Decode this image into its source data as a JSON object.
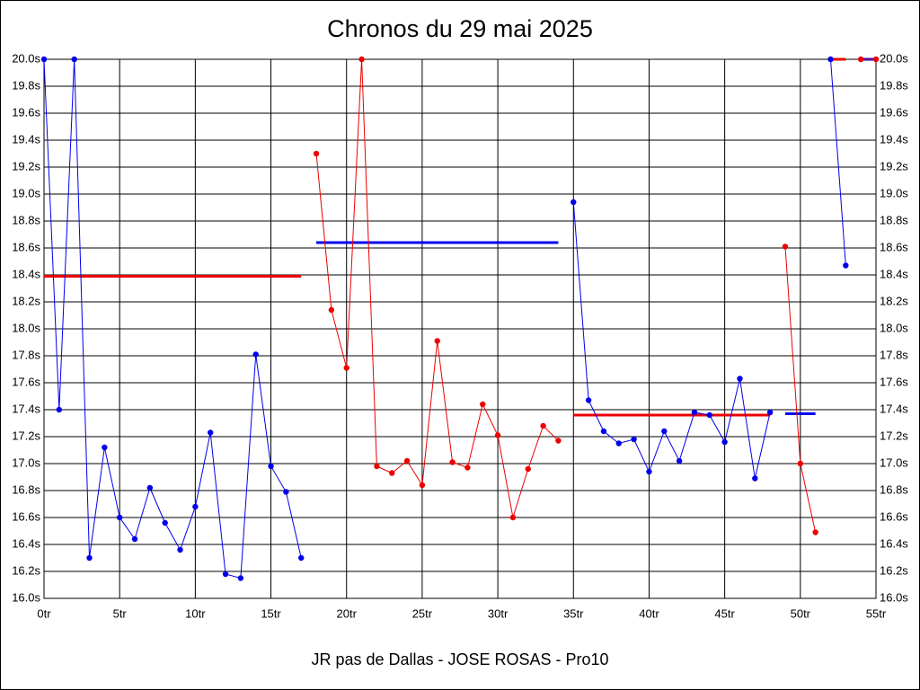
{
  "chart_data": {
    "type": "line",
    "title": "Chronos du 29 mai 2025",
    "x_label": "JR pas de Dallas - JOSE ROSAS - Pro10",
    "xlim": [
      0,
      55
    ],
    "xticks": [
      {
        "value": 0,
        "label": "0tr"
      },
      {
        "value": 5,
        "label": "5tr"
      },
      {
        "value": 10,
        "label": "10tr"
      },
      {
        "value": 15,
        "label": "15tr"
      },
      {
        "value": 20,
        "label": "20tr"
      },
      {
        "value": 25,
        "label": "25tr"
      },
      {
        "value": 30,
        "label": "30tr"
      },
      {
        "value": 35,
        "label": "35tr"
      },
      {
        "value": 40,
        "label": "40tr"
      },
      {
        "value": 45,
        "label": "45tr"
      },
      {
        "value": 50,
        "label": "50tr"
      },
      {
        "value": 55,
        "label": "55tr"
      }
    ],
    "ylim": [
      16.0,
      20.0
    ],
    "yticks": [
      {
        "value": 16.0,
        "label": "16.0s"
      },
      {
        "value": 16.2,
        "label": "16.2s"
      },
      {
        "value": 16.4,
        "label": "16.4s"
      },
      {
        "value": 16.6,
        "label": "16.6s"
      },
      {
        "value": 16.8,
        "label": "16.8s"
      },
      {
        "value": 17.0,
        "label": "17.0s"
      },
      {
        "value": 17.2,
        "label": "17.2s"
      },
      {
        "value": 17.4,
        "label": "17.4s"
      },
      {
        "value": 17.6,
        "label": "17.6s"
      },
      {
        "value": 17.8,
        "label": "17.8s"
      },
      {
        "value": 18.0,
        "label": "18.0s"
      },
      {
        "value": 18.2,
        "label": "18.2s"
      },
      {
        "value": 18.4,
        "label": "18.4s"
      },
      {
        "value": 18.6,
        "label": "18.6s"
      },
      {
        "value": 18.8,
        "label": "18.8s"
      },
      {
        "value": 19.0,
        "label": "19.0s"
      },
      {
        "value": 19.2,
        "label": "19.2s"
      },
      {
        "value": 19.4,
        "label": "19.4s"
      },
      {
        "value": 19.6,
        "label": "19.6s"
      },
      {
        "value": 19.8,
        "label": "19.8s"
      },
      {
        "value": 20.0,
        "label": "20.0s"
      }
    ],
    "grid": true,
    "series": [
      {
        "color": "#0000ee",
        "x": [
          0,
          1,
          2,
          3,
          4,
          5,
          6,
          7,
          8,
          9,
          10,
          11,
          12,
          13,
          14,
          15,
          16,
          17
        ],
        "values": [
          20.0,
          17.4,
          20.0,
          16.3,
          17.12,
          16.6,
          16.44,
          16.82,
          16.56,
          16.36,
          16.68,
          17.23,
          16.18,
          16.15,
          17.81,
          16.98,
          16.79,
          16.3
        ]
      },
      {
        "color": "#ee0000",
        "x": [
          18,
          19,
          20,
          21,
          22,
          23,
          24,
          25,
          26,
          27,
          28,
          29,
          30,
          31,
          32,
          33,
          34
        ],
        "values": [
          19.3,
          18.14,
          17.71,
          20.0,
          16.98,
          16.93,
          17.02,
          16.84,
          17.91,
          17.01,
          16.97,
          17.44,
          17.21,
          16.6,
          16.96,
          17.28,
          17.17
        ]
      },
      {
        "color": "#0000ee",
        "x": [
          35,
          36,
          37,
          38,
          39,
          40,
          41,
          42,
          43,
          44,
          45,
          46,
          47,
          48
        ],
        "values": [
          18.94,
          17.47,
          17.24,
          17.15,
          17.18,
          16.94,
          17.24,
          17.02,
          17.38,
          17.36,
          17.16,
          17.63,
          16.89,
          17.38
        ]
      },
      {
        "color": "#ee0000",
        "x": [
          49,
          50,
          51
        ],
        "values": [
          18.61,
          17.0,
          16.49
        ]
      },
      {
        "color": "#0000ee",
        "x": [
          52,
          53
        ],
        "values": [
          20.0,
          18.47
        ]
      },
      {
        "color": "#ee0000",
        "x": [
          54,
          55
        ],
        "values": [
          20.0,
          20.0
        ]
      }
    ],
    "averages": [
      {
        "color": "#ee0000",
        "x": [
          0,
          17
        ],
        "value": 18.39
      },
      {
        "color": "#0000ee",
        "x": [
          18,
          34
        ],
        "value": 18.64
      },
      {
        "color": "#ee0000",
        "x": [
          35,
          48
        ],
        "value": 17.36
      },
      {
        "color": "#0000ee",
        "x": [
          49,
          51
        ],
        "value": 17.37
      },
      {
        "color": "#ee0000",
        "x": [
          52,
          53
        ],
        "value": 20.0
      },
      {
        "color": "#0000ee",
        "x": [
          54,
          55
        ],
        "value": 20.0
      }
    ]
  }
}
